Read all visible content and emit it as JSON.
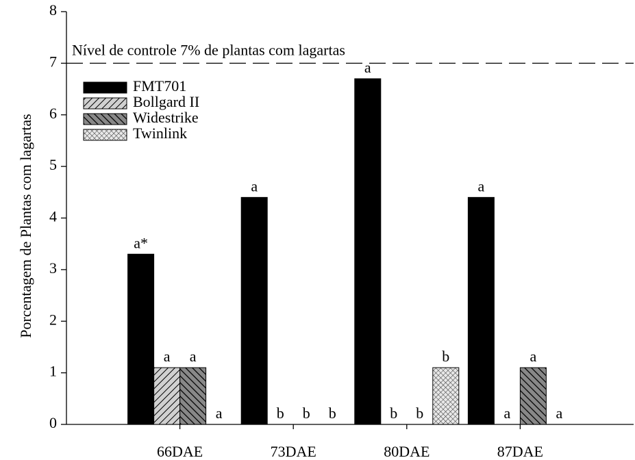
{
  "chart_data": {
    "type": "bar",
    "y_label": "Porcentagem de Plantas com lagartas",
    "categories": [
      "66DAE",
      "73DAE",
      "80DAE",
      "87DAE"
    ],
    "series": [
      {
        "name": "FMT701",
        "color": "#000000",
        "hatch": "solid",
        "values": [
          3.3,
          4.4,
          6.7,
          4.4
        ],
        "letters": [
          "a*",
          "a",
          "a",
          "a"
        ]
      },
      {
        "name": "Bollgard II",
        "color": "#b0b0b0",
        "hatch": "forward",
        "values": [
          1.1,
          0,
          0,
          0
        ],
        "letters": [
          "a",
          "b",
          "b",
          "a"
        ]
      },
      {
        "name": "Widestrike",
        "color": "#5a5a5a",
        "hatch": "back",
        "values": [
          1.1,
          0,
          0,
          1.1
        ],
        "letters": [
          "a",
          "b",
          "b",
          "a"
        ]
      },
      {
        "name": "Twinlink",
        "color": "#cfcfcf",
        "hatch": "cross",
        "values": [
          0,
          0,
          1.1,
          0
        ],
        "letters": [
          "a",
          "b",
          "b",
          "a"
        ]
      }
    ],
    "reference_line": {
      "value": 7,
      "label": "Nível de controle 7% de plantas com lagartas"
    },
    "ylim": [
      0,
      8
    ],
    "yticks": [
      0,
      1,
      2,
      3,
      4,
      5,
      6,
      7,
      8
    ],
    "grid": false,
    "legend": "upper left"
  }
}
